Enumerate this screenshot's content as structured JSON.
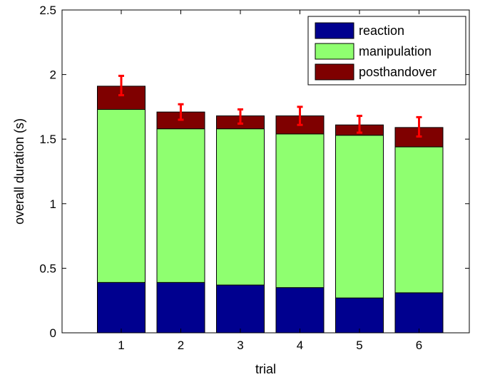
{
  "chart_data": {
    "type": "bar",
    "stacked": true,
    "categories": [
      "1",
      "2",
      "3",
      "4",
      "5",
      "6"
    ],
    "series": [
      {
        "name": "reaction",
        "color": "#00008F",
        "values": [
          0.39,
          0.39,
          0.37,
          0.35,
          0.27,
          0.31
        ]
      },
      {
        "name": "manipulation",
        "color": "#8FFF70",
        "values": [
          1.34,
          1.19,
          1.21,
          1.19,
          1.26,
          1.13
        ]
      },
      {
        "name": "posthandover",
        "color": "#7F0000",
        "values": [
          0.18,
          0.13,
          0.1,
          0.14,
          0.08,
          0.15
        ]
      }
    ],
    "error_bars": {
      "color": "#FF0000",
      "low": [
        1.84,
        1.65,
        1.62,
        1.61,
        1.55,
        1.52
      ],
      "high": [
        1.99,
        1.77,
        1.73,
        1.75,
        1.68,
        1.67
      ]
    },
    "title": "",
    "xlabel": "trial",
    "ylabel": "overall duration (s)",
    "ylim": [
      0,
      2.5
    ],
    "yticks": [
      "0",
      "0.5",
      "1",
      "1.5",
      "2",
      "2.5"
    ],
    "grid": false,
    "legend_position": "top-right"
  }
}
